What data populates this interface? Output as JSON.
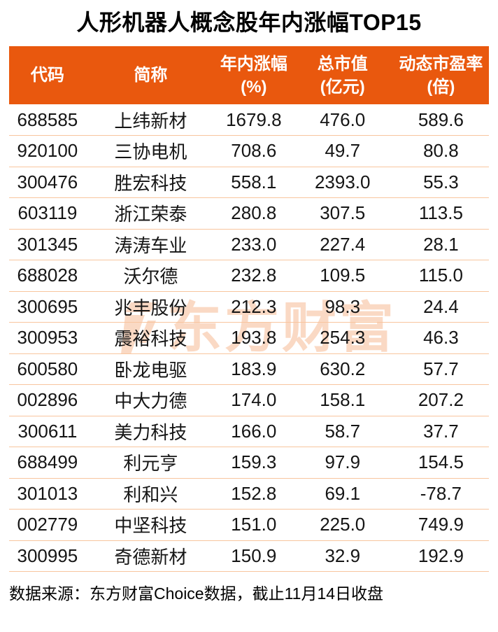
{
  "title": "人形机器人概念股年内涨幅TOP15",
  "watermark": {
    "logo_icon": "eastmoney-logo-icon",
    "text": "东方财富"
  },
  "footer": {
    "source_note": "数据来源：东方财富Choice数据，截止11月14日收盘"
  },
  "colors": {
    "header_bg": "#E9580E",
    "header_text": "#FFFFFF",
    "row_divider": "#F8C59E",
    "body_text": "#151515",
    "watermark": "#FAD9C4",
    "title_text": "#000000"
  },
  "chart_data": {
    "type": "table",
    "title": "人形机器人概念股年内涨幅TOP15",
    "columns": [
      {
        "key": "code",
        "label": "代码",
        "sub": "",
        "width": "16%"
      },
      {
        "key": "name",
        "label": "简称",
        "sub": "",
        "width": "27%"
      },
      {
        "key": "gain",
        "label": "年内涨幅",
        "sub": "(%)",
        "width": "16%"
      },
      {
        "key": "cap",
        "label": "总市值",
        "sub": "(亿元)",
        "width": "21%"
      },
      {
        "key": "pe",
        "label": "动态市盈率",
        "sub": "(倍)",
        "width": "20%"
      }
    ],
    "rows": [
      [
        "688585",
        "上纬新材",
        "1679.8",
        "476.0",
        "589.6"
      ],
      [
        "920100",
        "三协电机",
        "708.6",
        "49.7",
        "80.8"
      ],
      [
        "300476",
        "胜宏科技",
        "558.1",
        "2393.0",
        "55.3"
      ],
      [
        "603119",
        "浙江荣泰",
        "280.8",
        "307.5",
        "113.5"
      ],
      [
        "301345",
        "涛涛车业",
        "233.0",
        "227.4",
        "28.1"
      ],
      [
        "688028",
        "沃尔德",
        "232.8",
        "109.5",
        "115.0"
      ],
      [
        "300695",
        "兆丰股份",
        "212.3",
        "98.3",
        "24.4"
      ],
      [
        "300953",
        "震裕科技",
        "193.8",
        "254.3",
        "46.3"
      ],
      [
        "600580",
        "卧龙电驱",
        "183.9",
        "630.2",
        "57.7"
      ],
      [
        "002896",
        "中大力德",
        "174.0",
        "158.1",
        "207.2"
      ],
      [
        "300611",
        "美力科技",
        "166.0",
        "58.7",
        "37.7"
      ],
      [
        "688499",
        "利元亨",
        "159.3",
        "97.9",
        "154.5"
      ],
      [
        "301013",
        "利和兴",
        "152.8",
        "69.1",
        "-78.7"
      ],
      [
        "002779",
        "中坚科技",
        "151.0",
        "225.0",
        "749.9"
      ],
      [
        "300995",
        "奇德新材",
        "150.9",
        "32.9",
        "192.9"
      ]
    ]
  }
}
